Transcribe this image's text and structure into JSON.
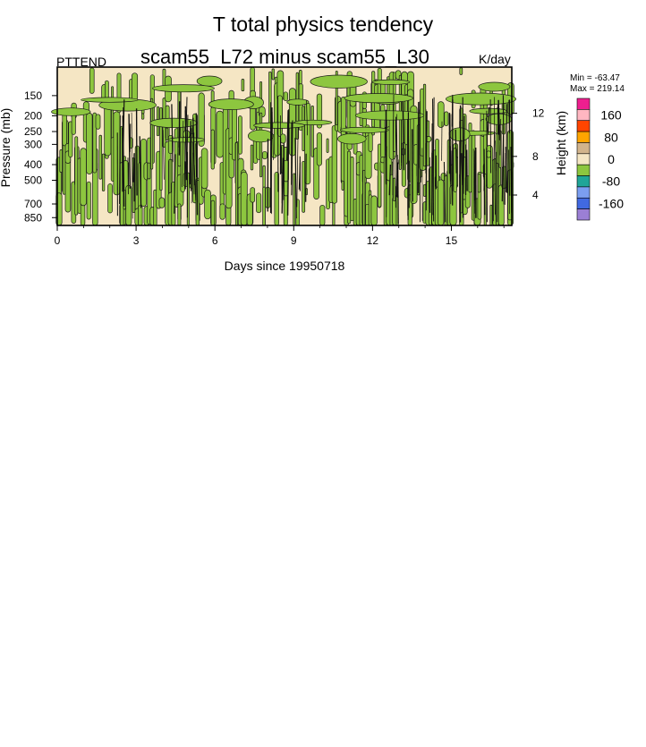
{
  "chart_data": {
    "type": "heatmap",
    "title": "T total physics tendency",
    "subtitle": "scam55_L72 minus scam55_L30",
    "left_label": "PTTEND",
    "units": "K/day",
    "xlabel": "Days since 19950718",
    "ylabel": "Pressure (mb)",
    "ylabel_right": "Height (km)",
    "x_ticks": [
      0,
      3,
      6,
      9,
      12,
      15
    ],
    "xlim": [
      0,
      17.3
    ],
    "y_ticks": [
      150,
      200,
      250,
      300,
      400,
      500,
      700,
      850
    ],
    "ylim": [
      100,
      950
    ],
    "y_scale": "log",
    "right_ticks": [
      4,
      8,
      12
    ],
    "stats": {
      "min_label": "Min = -63.47",
      "max_label": "Max = 219.14"
    },
    "colorbar": {
      "levels": [
        {
          "label": "",
          "color": "#ee1f8f"
        },
        {
          "label": "160",
          "color": "#ffb6c1"
        },
        {
          "label": "",
          "color": "#ff4500"
        },
        {
          "label": "80",
          "color": "#ffa500"
        },
        {
          "label": "",
          "color": "#d2b48c"
        },
        {
          "label": "0",
          "color": "#f5e6c4"
        },
        {
          "label": "",
          "color": "#8dc63f"
        },
        {
          "label": "-80",
          "color": "#20a598"
        },
        {
          "label": "",
          "color": "#7b9ef0"
        },
        {
          "label": "-160",
          "color": "#4169e1"
        },
        {
          "label": "",
          "color": "#9b7fd4"
        }
      ]
    },
    "fill_colors": {
      "positive": "#f5e6c4",
      "negative": "#8dc63f"
    },
    "negative_fraction_by_day": [
      {
        "day": 0,
        "fraction": 0.35
      },
      {
        "day": 2,
        "fraction": 0.45
      },
      {
        "day": 4,
        "fraction": 0.55
      },
      {
        "day": 6,
        "fraction": 0.45
      },
      {
        "day": 8,
        "fraction": 0.5
      },
      {
        "day": 10,
        "fraction": 0.35
      },
      {
        "day": 12,
        "fraction": 0.6
      },
      {
        "day": 14,
        "fraction": 0.55
      },
      {
        "day": 16,
        "fraction": 0.6
      }
    ]
  }
}
